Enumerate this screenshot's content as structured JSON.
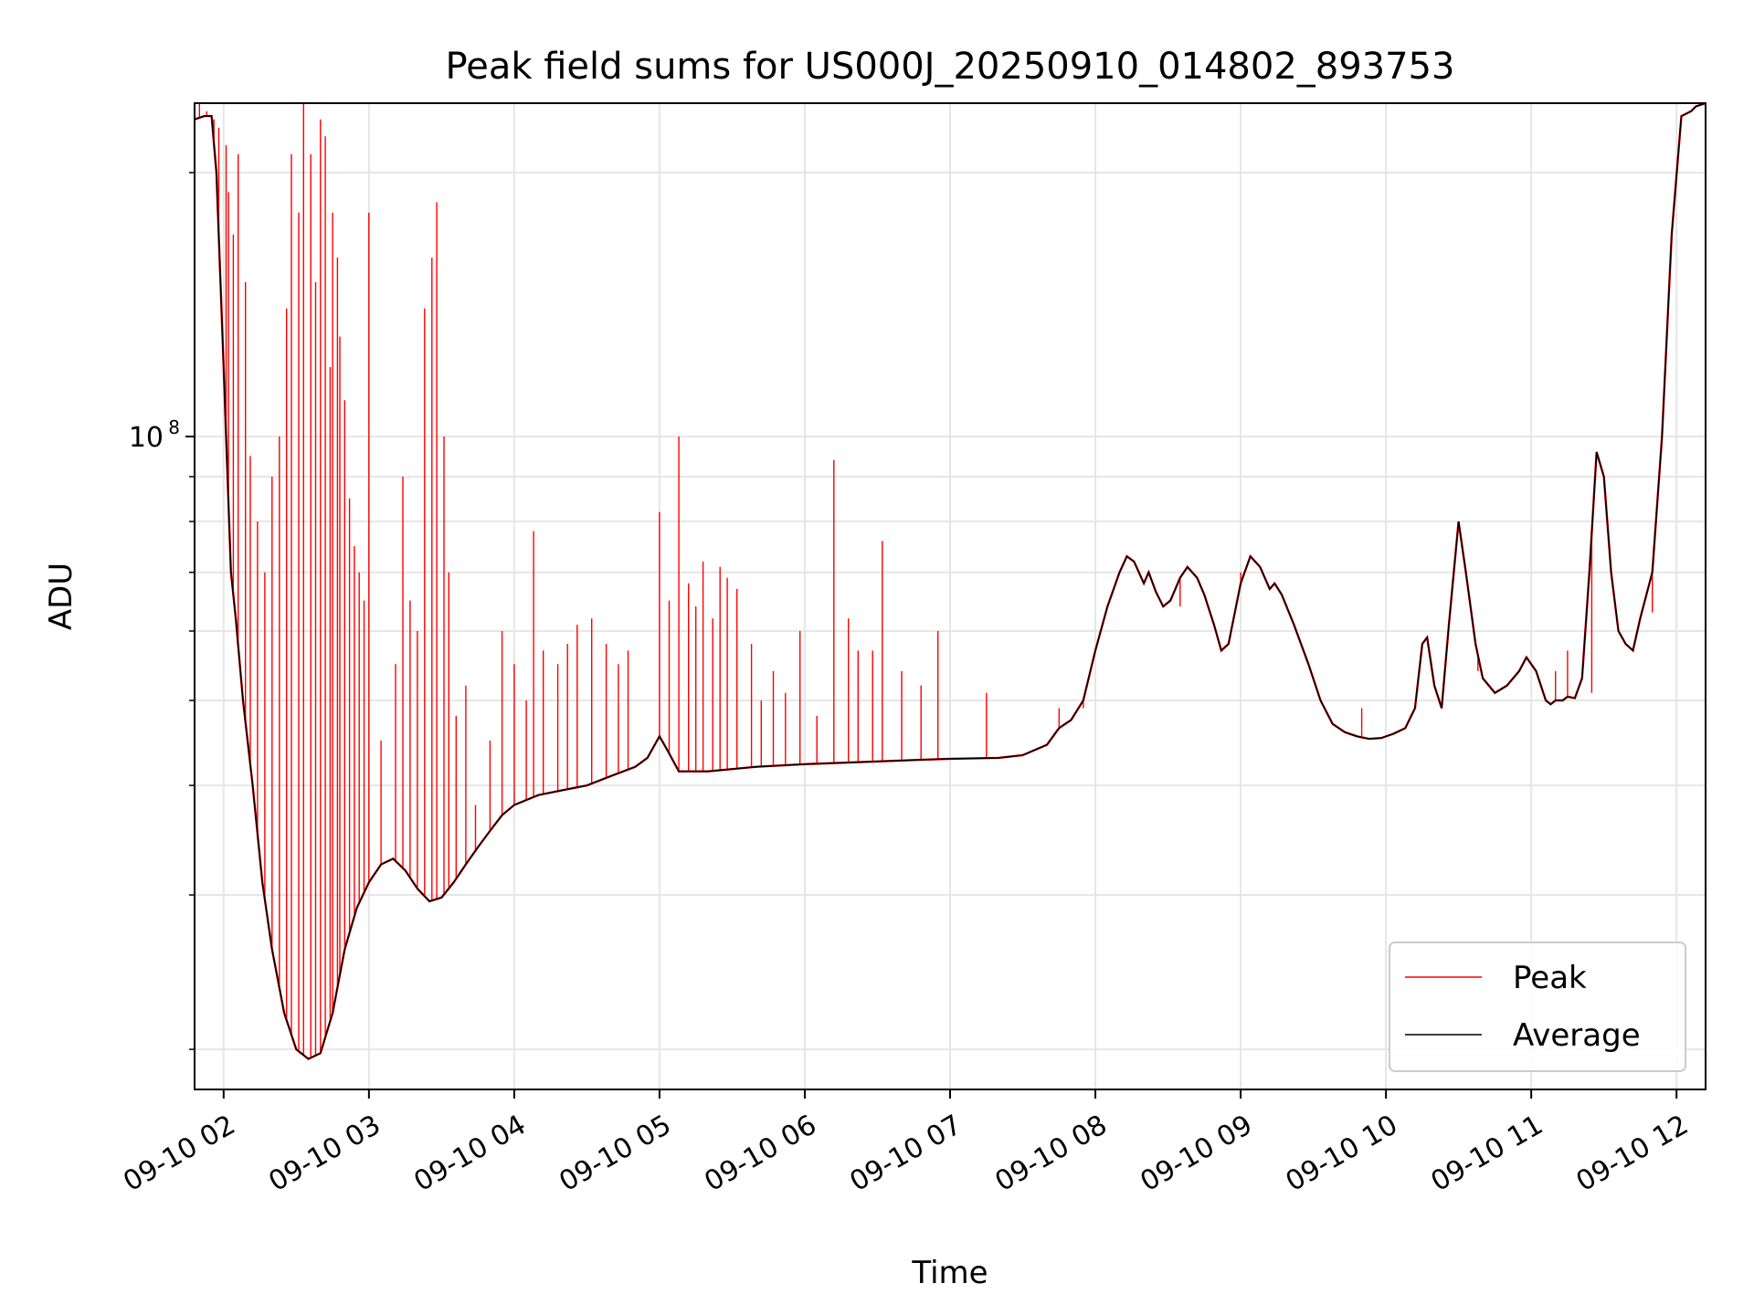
{
  "chart_data": {
    "type": "line",
    "title": "Peak field sums for US000J_20250910_014802_893753",
    "xlabel": "Time",
    "ylabel": "ADU",
    "yscale": "log",
    "ylim": [
      18000000,
      240000000
    ],
    "x_range": [
      "09-10 01:48",
      "09-10 12:12"
    ],
    "x_ticks": [
      "09-10 02",
      "09-10 03",
      "09-10 04",
      "09-10 05",
      "09-10 06",
      "09-10 07",
      "09-10 08",
      "09-10 09",
      "09-10 10",
      "09-10 11",
      "09-10 12"
    ],
    "y_major_tick_label": "10",
    "y_major_tick_exponent": "8",
    "y_major_tick_value": 100000000,
    "y_minor_ticks": [
      20000000,
      30000000,
      40000000,
      50000000,
      60000000,
      70000000,
      80000000,
      90000000,
      200000000
    ],
    "grid": true,
    "legend_position": "lower-right",
    "series": [
      {
        "name": "Average",
        "color": "#000000",
        "x": [
          "01:48",
          "01:52",
          "01:55",
          "01:57",
          "02:00",
          "02:03",
          "02:05",
          "02:08",
          "02:12",
          "02:16",
          "02:20",
          "02:25",
          "02:30",
          "02:35",
          "02:40",
          "02:45",
          "02:50",
          "02:55",
          "03:00",
          "03:05",
          "03:10",
          "03:15",
          "03:20",
          "03:25",
          "03:30",
          "03:35",
          "03:40",
          "03:45",
          "03:50",
          "03:55",
          "04:00",
          "04:10",
          "04:20",
          "04:30",
          "04:40",
          "04:50",
          "04:55",
          "05:00",
          "05:03",
          "05:08",
          "05:20",
          "05:40",
          "06:00",
          "06:20",
          "06:40",
          "07:00",
          "07:20",
          "07:30",
          "07:40",
          "07:45",
          "07:50",
          "07:55",
          "08:00",
          "08:05",
          "08:10",
          "08:13",
          "08:16",
          "08:20",
          "08:22",
          "08:25",
          "08:28",
          "08:31",
          "08:35",
          "08:38",
          "08:42",
          "08:45",
          "08:49",
          "08:52",
          "08:55",
          "09:00",
          "09:04",
          "09:08",
          "09:12",
          "09:14",
          "09:17",
          "09:22",
          "09:28",
          "09:33",
          "09:38",
          "09:43",
          "09:48",
          "09:53",
          "09:58",
          "10:03",
          "10:08",
          "10:12",
          "10:15",
          "10:17",
          "10:20",
          "10:23",
          "10:26",
          "10:30",
          "10:33",
          "10:37",
          "10:40",
          "10:45",
          "10:50",
          "10:55",
          "10:58",
          "11:02",
          "11:06",
          "11:08",
          "11:10",
          "11:13",
          "11:15",
          "11:18",
          "11:21",
          "11:24",
          "11:27",
          "11:30",
          "11:33",
          "11:36",
          "11:39",
          "11:42",
          "11:45",
          "11:50",
          "11:54",
          "11:58",
          "12:02",
          "12:06",
          "12:08",
          "12:12"
        ],
        "values": [
          230000000,
          232000000,
          232000000,
          200000000,
          120000000,
          70000000,
          62000000,
          50000000,
          40000000,
          31000000,
          26000000,
          22000000,
          20000000,
          19500000,
          19800000,
          22000000,
          26000000,
          29000000,
          31000000,
          32500000,
          33000000,
          32000000,
          30500000,
          29500000,
          29800000,
          31000000,
          32500000,
          34000000,
          35500000,
          37000000,
          38000000,
          39000000,
          39500000,
          40000000,
          41000000,
          42000000,
          43000000,
          45500000,
          44000000,
          41500000,
          41500000,
          42000000,
          42300000,
          42500000,
          42700000,
          42900000,
          43000000,
          43300000,
          44500000,
          46500000,
          47500000,
          50000000,
          57000000,
          64000000,
          70000000,
          73000000,
          72000000,
          68000000,
          70000000,
          66500000,
          64000000,
          65000000,
          69000000,
          71000000,
          69000000,
          66000000,
          61000000,
          57000000,
          58000000,
          68000000,
          73000000,
          71000000,
          67000000,
          68000000,
          66000000,
          61000000,
          55000000,
          50000000,
          47000000,
          46000000,
          45500000,
          45200000,
          45300000,
          45800000,
          46500000,
          49000000,
          58000000,
          59000000,
          52000000,
          49000000,
          61000000,
          80000000,
          70000000,
          58000000,
          53000000,
          51000000,
          52000000,
          54000000,
          56000000,
          54000000,
          50000000,
          49500000,
          50000000,
          50000000,
          50500000,
          50300000,
          53000000,
          70000000,
          96000000,
          90000000,
          70000000,
          60000000,
          58000000,
          57000000,
          62000000,
          70000000,
          100000000,
          170000000,
          232000000,
          235000000,
          238000000,
          240000000
        ]
      },
      {
        "name": "Peak",
        "color": "#ff0000",
        "spike_x": [
          "01:50",
          "01:53",
          "01:56",
          "01:58",
          "02:01",
          "02:02",
          "02:04",
          "02:06",
          "02:09",
          "02:11",
          "02:14",
          "02:17",
          "02:20",
          "02:23",
          "02:26",
          "02:28",
          "02:31",
          "02:33",
          "02:36",
          "02:38",
          "02:40",
          "02:42",
          "02:44",
          "02:45",
          "02:47",
          "02:48",
          "02:50",
          "02:52",
          "02:54",
          "02:56",
          "02:58",
          "03:00",
          "03:05",
          "03:11",
          "03:14",
          "03:17",
          "03:20",
          "03:23",
          "03:26",
          "03:28",
          "03:31",
          "03:33",
          "03:36",
          "03:40",
          "03:44",
          "03:50",
          "03:55",
          "04:00",
          "04:05",
          "04:08",
          "04:12",
          "04:18",
          "04:22",
          "04:26",
          "04:32",
          "04:38",
          "04:43",
          "04:47",
          "05:00",
          "05:04",
          "05:08",
          "05:12",
          "05:15",
          "05:18",
          "05:22",
          "05:25",
          "05:28",
          "05:32",
          "05:38",
          "05:42",
          "05:47",
          "05:52",
          "05:58",
          "06:05",
          "06:12",
          "06:18",
          "06:22",
          "06:28",
          "06:32",
          "06:40",
          "06:48",
          "06:55",
          "07:15",
          "07:45",
          "07:55",
          "08:35",
          "09:00",
          "09:50",
          "10:10",
          "10:38",
          "11:10",
          "11:15",
          "11:25",
          "11:50"
        ],
        "spike_values": [
          240000000,
          235000000,
          230000000,
          225000000,
          215000000,
          190000000,
          170000000,
          210000000,
          150000000,
          95000000,
          80000000,
          70000000,
          90000000,
          100000000,
          140000000,
          210000000,
          180000000,
          240000000,
          210000000,
          150000000,
          230000000,
          220000000,
          120000000,
          180000000,
          160000000,
          130000000,
          110000000,
          85000000,
          75000000,
          70000000,
          65000000,
          180000000,
          45000000,
          55000000,
          90000000,
          65000000,
          60000000,
          140000000,
          160000000,
          185000000,
          100000000,
          70000000,
          48000000,
          52000000,
          38000000,
          45000000,
          60000000,
          55000000,
          50000000,
          78000000,
          57000000,
          55000000,
          58000000,
          61000000,
          62000000,
          58000000,
          55000000,
          57000000,
          82000000,
          65000000,
          100000000,
          68000000,
          64000000,
          72000000,
          62000000,
          71000000,
          69000000,
          67000000,
          58000000,
          50000000,
          54000000,
          51000000,
          60000000,
          48000000,
          94000000,
          62000000,
          57000000,
          57000000,
          76000000,
          54000000,
          52000000,
          60000000,
          51000000,
          49000000,
          49000000,
          64000000,
          70000000,
          49000000,
          48000000,
          54000000,
          54000000,
          57000000,
          51000000,
          63000000
        ]
      }
    ]
  }
}
